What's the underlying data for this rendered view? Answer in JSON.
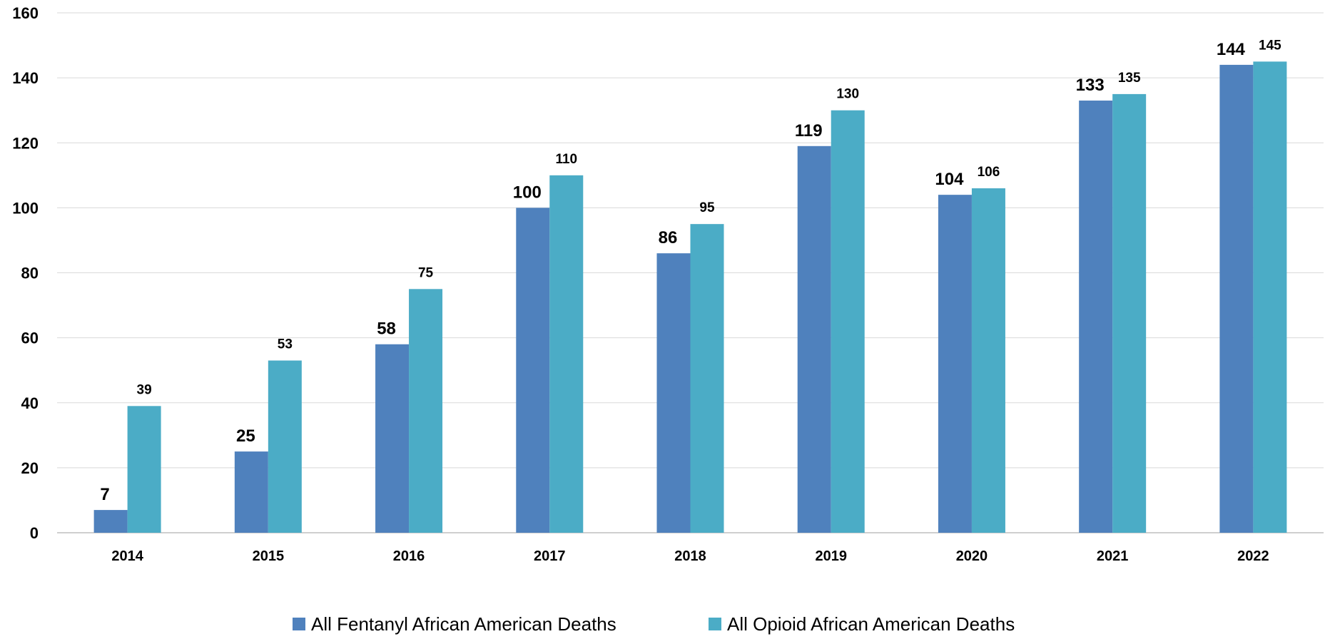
{
  "chart_data": {
    "type": "bar",
    "title": "",
    "xlabel": "",
    "ylabel": "",
    "ylim": [
      0,
      160
    ],
    "yticks": [
      0,
      20,
      40,
      60,
      80,
      100,
      120,
      140,
      160
    ],
    "grid": true,
    "legend_position": "bottom",
    "categories": [
      "2014",
      "2015",
      "2016",
      "2017",
      "2018",
      "2019",
      "2020",
      "2021",
      "2022"
    ],
    "series": [
      {
        "name": "All Fentanyl African American Deaths",
        "color": "#4f81bd",
        "values": [
          7,
          25,
          58,
          100,
          86,
          119,
          104,
          133,
          144
        ]
      },
      {
        "name": "All Opioid African American Deaths",
        "color": "#4bacc6",
        "values": [
          39,
          53,
          75,
          110,
          95,
          130,
          106,
          135,
          145
        ]
      }
    ]
  }
}
